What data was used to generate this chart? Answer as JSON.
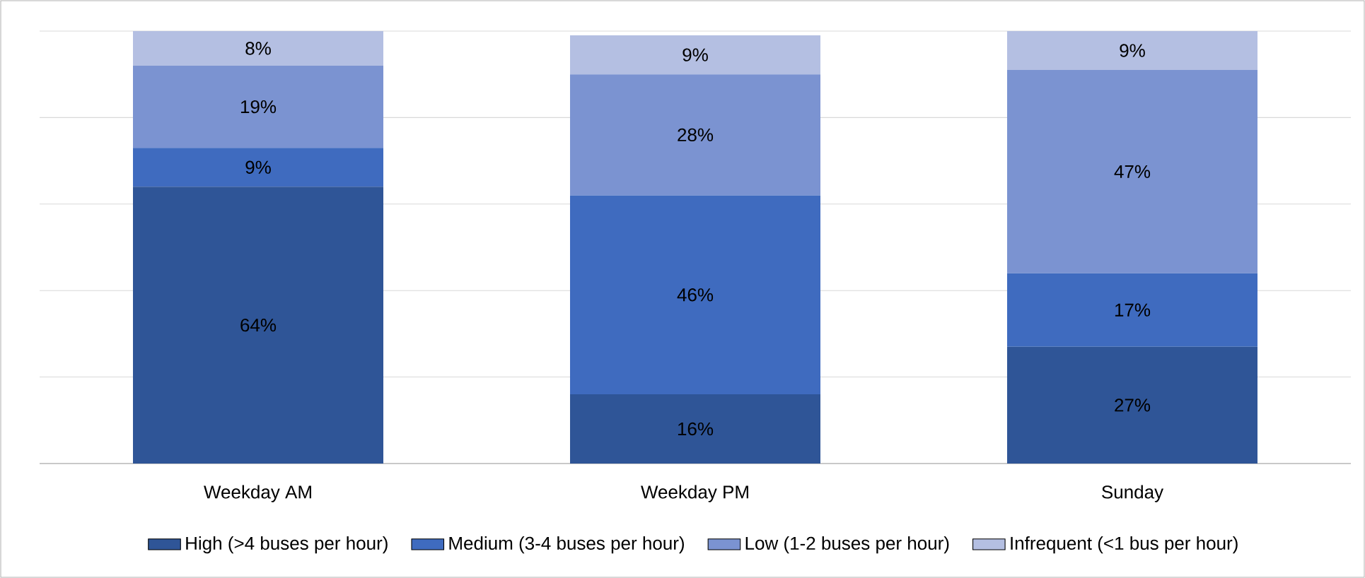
{
  "chart_data": {
    "type": "bar",
    "stacked": true,
    "categories": [
      "Weekday AM",
      "Weekday PM",
      "Sunday"
    ],
    "grid": "y",
    "tick_labels": "x",
    "legend": "bottom",
    "data_labels": true,
    "series": [
      {
        "name": "High (>4 buses per hour)",
        "color": "#2f5597",
        "values": [
          64,
          16,
          27
        ],
        "value_labels": [
          "64%",
          "16%",
          "27%"
        ]
      },
      {
        "name": "Medium (3-4 buses per hour)",
        "color": "#3f6bbf",
        "values": [
          9,
          46,
          17
        ],
        "value_labels": [
          "9%",
          "46%",
          "17%"
        ]
      },
      {
        "name": "Low (1-2 buses per hour)",
        "color": "#7b93d1",
        "values": [
          19,
          28,
          47
        ],
        "value_labels": [
          "19%",
          "28%",
          "47%"
        ]
      },
      {
        "name": "Infrequent (<1 bus per hour)",
        "color": "#b4bfe2",
        "values": [
          8,
          9,
          9
        ],
        "value_labels": [
          "8%",
          "9%",
          "9%"
        ]
      }
    ]
  }
}
